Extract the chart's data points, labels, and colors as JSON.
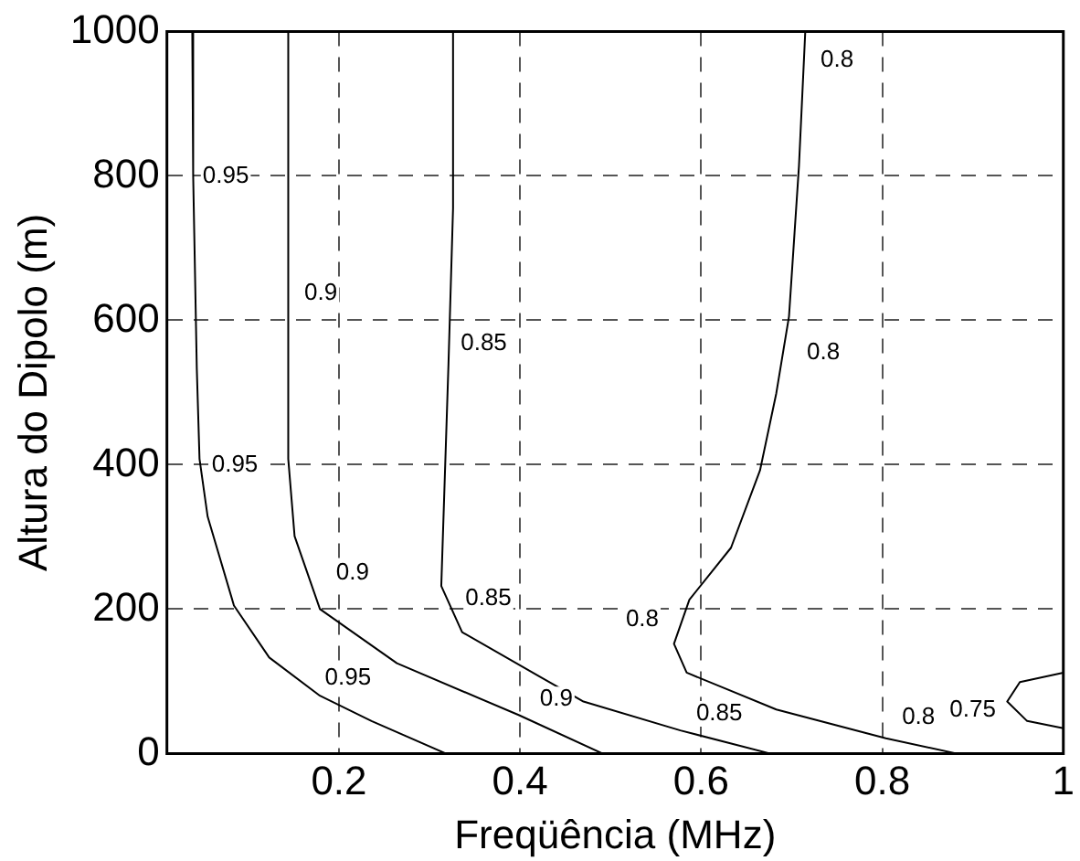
{
  "chart_data": {
    "type": "line",
    "xlabel": "Freqüência (MHz)",
    "ylabel": "Altura do Dipolo (m)",
    "xlim": [
      0.01,
      1
    ],
    "xticks": [
      0.2,
      0.4,
      0.6,
      0.8,
      1
    ],
    "ylim": [
      0,
      1000
    ],
    "yticks": [
      0,
      200,
      400,
      600,
      800,
      1000
    ],
    "grid": true,
    "legend": false,
    "marker": "none",
    "line_style": "solid",
    "series": [
      {
        "color": "#000000",
        "x": [
          0.038,
          0.039,
          0.043,
          0.046,
          0.055,
          0.084,
          0.123,
          0.179,
          0.236,
          0.318
        ],
        "values": [
          1000,
          800,
          533,
          408,
          328,
          205,
          133,
          80,
          45,
          0
        ]
      },
      {
        "color": "#000000",
        "x": [
          0.144,
          0.144,
          0.151,
          0.179,
          0.264,
          0.399,
          0.491
        ],
        "values": [
          1000,
          408,
          301,
          200,
          125,
          53,
          0
        ]
      },
      {
        "color": "#000000",
        "x": [
          0.326,
          0.326,
          0.321,
          0.313,
          0.336,
          0.421,
          0.47,
          0.577,
          0.676
        ],
        "values": [
          1000,
          755,
          541,
          232,
          168,
          107,
          72,
          32,
          0
        ]
      },
      {
        "color": "#000000",
        "x": [
          0.715,
          0.708,
          0.697,
          0.683,
          0.665,
          0.633,
          0.587,
          0.57,
          0.584,
          0.683,
          0.804,
          0.882
        ],
        "values": [
          1000,
          813,
          605,
          499,
          392,
          285,
          213,
          152,
          112,
          61,
          21,
          0
        ]
      },
      {
        "color": "#000000",
        "x": [
          1,
          0.952,
          0.938,
          0.96,
          1
        ],
        "values": [
          112,
          99,
          72,
          45,
          35
        ]
      }
    ],
    "annotations": [
      {
        "text": "0.95",
        "x": 0.075,
        "y": 800
      },
      {
        "text": "0.95",
        "x": 0.085,
        "y": 400
      },
      {
        "text": "0.95",
        "x": 0.21,
        "y": 105
      },
      {
        "text": "0.9",
        "x": 0.18,
        "y": 637
      },
      {
        "text": "0.9",
        "x": 0.215,
        "y": 250
      },
      {
        "text": "0.9",
        "x": 0.44,
        "y": 75
      },
      {
        "text": "0.85",
        "x": 0.36,
        "y": 568
      },
      {
        "text": "0.85",
        "x": 0.365,
        "y": 215
      },
      {
        "text": "0.85",
        "x": 0.62,
        "y": 55
      },
      {
        "text": "0.8",
        "x": 0.75,
        "y": 960
      },
      {
        "text": "0.8",
        "x": 0.735,
        "y": 555
      },
      {
        "text": "0.8",
        "x": 0.535,
        "y": 185
      },
      {
        "text": "0.8",
        "x": 0.84,
        "y": 50
      },
      {
        "text": "0.75",
        "x": 0.9,
        "y": 60
      }
    ]
  }
}
